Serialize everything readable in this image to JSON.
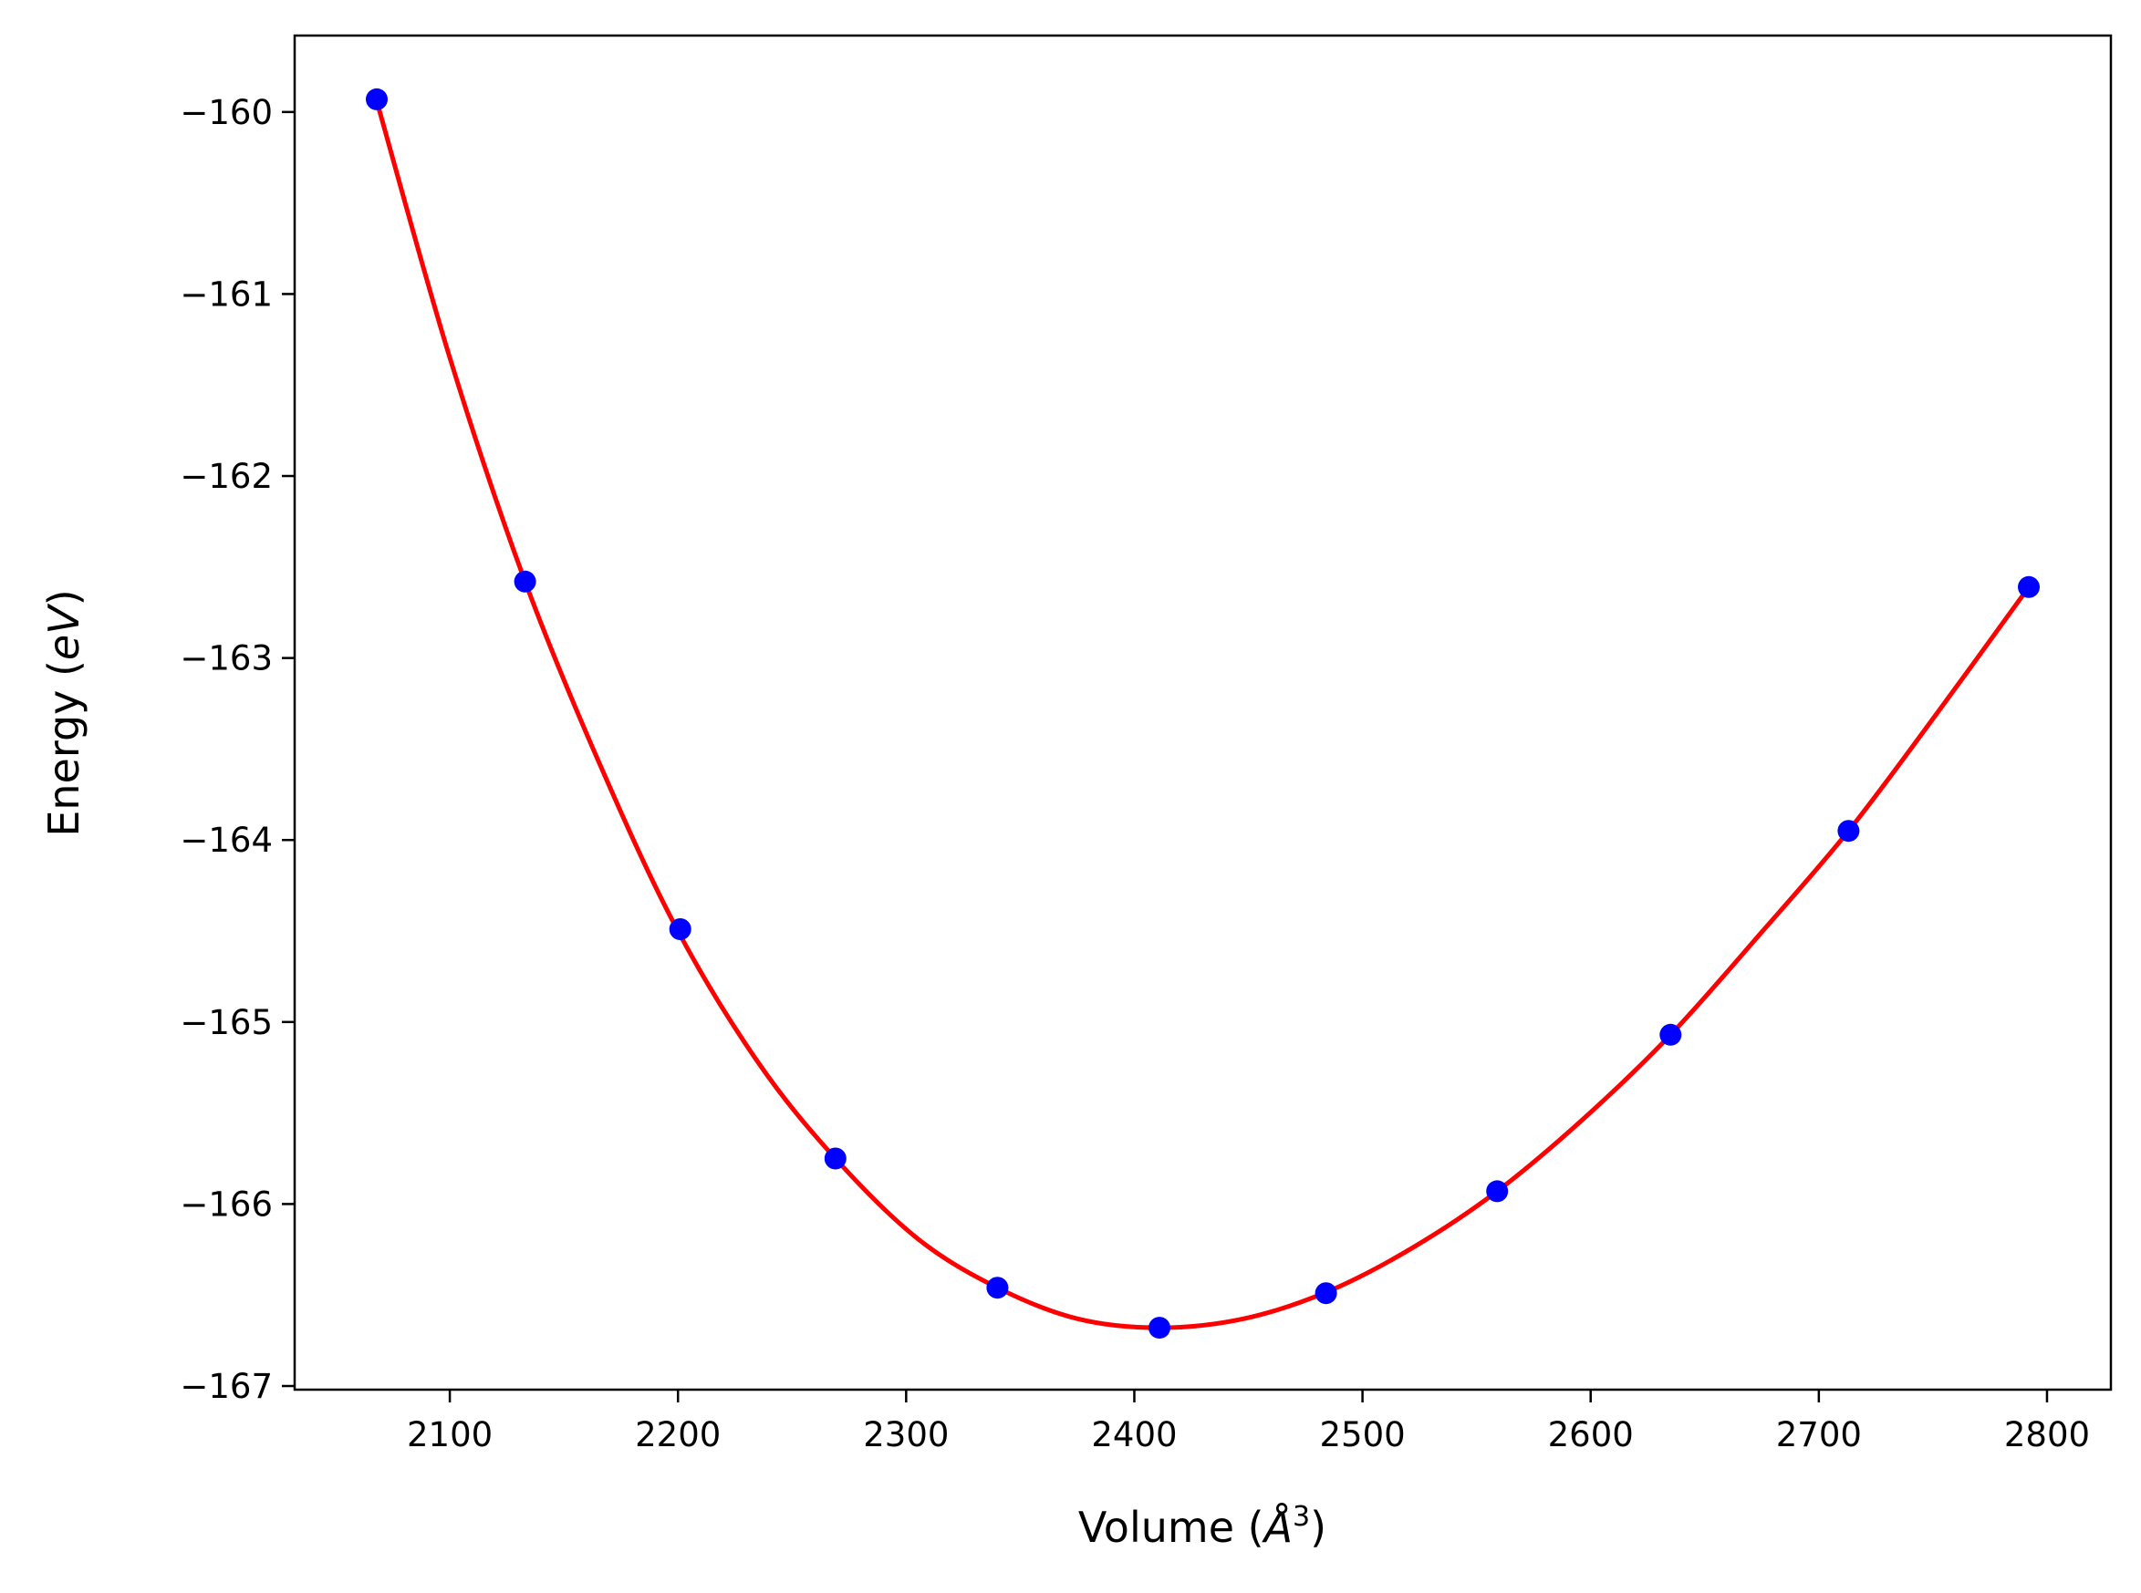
{
  "chart_data": {
    "type": "line",
    "xlabel": "Volume (",
    "xlabel_unit": "Å",
    "xlabel_exp": "3",
    "xlabel_close": ")",
    "ylabel": "Energy (",
    "ylabel_unit": "eV",
    "ylabel_close": ")",
    "xlim": [
      2032,
      2828
    ],
    "ylim": [
      -167.02,
      -159.58
    ],
    "x_ticks": [
      2100,
      2200,
      2300,
      2400,
      2500,
      2600,
      2700,
      2800
    ],
    "x_tick_labels": [
      "2100",
      "2200",
      "2300",
      "2400",
      "2500",
      "2600",
      "2700",
      "2800"
    ],
    "y_ticks": [
      -160,
      -161,
      -162,
      -163,
      -164,
      -165,
      -166,
      -167
    ],
    "y_tick_labels": [
      "−160",
      "−161",
      "−162",
      "−163",
      "−164",
      "−165",
      "−166",
      "−167"
    ],
    "grid": false,
    "series": [
      {
        "kind": "fit-line",
        "color": "#ff0000",
        "x": [
          2068,
          2100,
          2133,
          2167,
          2200,
          2235,
          2269,
          2305,
          2340,
          2375,
          2411,
          2448,
          2485,
          2522,
          2559,
          2597,
          2635,
          2674,
          2713,
          2752,
          2792
        ],
        "y": [
          -159.94,
          -161.35,
          -162.58,
          -163.62,
          -164.5,
          -165.22,
          -165.75,
          -166.19,
          -166.46,
          -166.63,
          -166.68,
          -166.63,
          -166.48,
          -166.24,
          -165.93,
          -165.53,
          -165.07,
          -164.52,
          -163.95,
          -163.3,
          -162.61
        ]
      },
      {
        "kind": "points",
        "color": "#0000ff",
        "x": [
          2068,
          2133,
          2201,
          2269,
          2340,
          2411,
          2484,
          2559,
          2635,
          2713,
          2792
        ],
        "y": [
          -159.93,
          -162.58,
          -164.49,
          -165.75,
          -166.46,
          -166.68,
          -166.49,
          -165.93,
          -165.07,
          -163.95,
          -162.61
        ]
      }
    ]
  }
}
